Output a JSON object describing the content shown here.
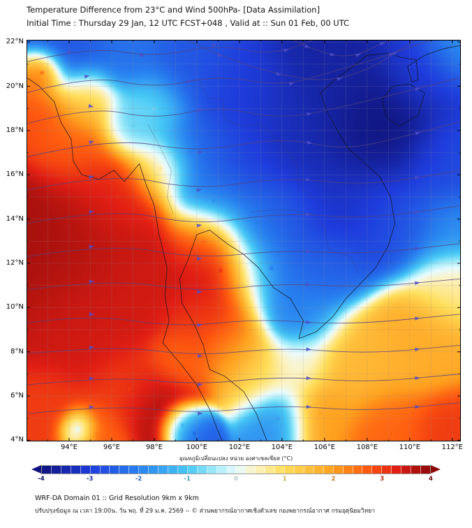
{
  "header": {
    "title_line1": "Temperature Difference from 23°C and Wind 500hPa- [Data Assimilation]",
    "title_line2": "Initial Time : Thursday 29 Jan, 12 UTC FCST+048 , Valid at ::  Sun 01 Feb, 00 UTC"
  },
  "footer": {
    "line1": "WRF-DA Domain 01 :: Grid Resolution 9km x 9km",
    "line2": "ปรับปรุงข้อมูล ณ เวลา 19:00น. วัน พฤ. ที่ 29 ม.ค. 2569 -- © ส่วนพยากรณ์อากาศเชิงตัวเลข กองพยากรณ์อากาศ กรมอุตุนิยมวิทยา"
  },
  "chart_data": {
    "type": "heatmap",
    "title": "Temperature Difference from 23°C and Wind 500hPa- [Data Assimilation]",
    "subtitle": "Initial Time : Thursday 29 Jan, 12 UTC FCST+048 , Valid at ::  Sun 01 Feb, 00 UTC",
    "extent": {
      "lon_min": 92.0,
      "lon_max": 112.4,
      "lat_min": 3.95,
      "lat_max": 22.1
    },
    "grid_step_deg": 1,
    "axes": {
      "lat_tick_values": [
        22,
        20,
        18,
        16,
        14,
        12,
        10,
        8,
        6,
        4
      ],
      "lat_tick_labels": [
        "22°N",
        "20°N",
        "18°N",
        "16°N",
        "14°N",
        "12°N",
        "10°N",
        "8°N",
        "6°N",
        "4°N"
      ],
      "lon_tick_values": [
        94,
        96,
        98,
        100,
        102,
        104,
        106,
        108,
        110,
        112
      ],
      "lon_tick_labels": [
        "94°E",
        "96°E",
        "98°E",
        "100°E",
        "102°E",
        "104°E",
        "106°E",
        "108°E",
        "110°E",
        "112°E"
      ]
    },
    "colorbar": {
      "label": "อุณหภูมิเปลี่ยนแปลง หน่วย องศาเซลเซียส (°C)",
      "range": [
        -4,
        4
      ],
      "tick_values": [
        -4,
        -3,
        -2,
        -1,
        0,
        1,
        2,
        3,
        4
      ],
      "cells": 40
    },
    "colormap": [
      [
        -4.0,
        "#10147E"
      ],
      [
        -3.0,
        "#1E3CDC"
      ],
      [
        -2.0,
        "#2882F0"
      ],
      [
        -1.0,
        "#46C8F5"
      ],
      [
        -0.4,
        "#A8EEFA"
      ],
      [
        0.0,
        "#E8FBFF"
      ],
      [
        0.4,
        "#FBF3C4"
      ],
      [
        1.0,
        "#FFDE5A"
      ],
      [
        2.0,
        "#FFA01E"
      ],
      [
        2.7,
        "#FF5A0F"
      ],
      [
        3.3,
        "#E11E14"
      ],
      [
        4.0,
        "#8C0A0A"
      ]
    ],
    "field_points": [
      [
        94.0,
        21.9,
        -2.6,
        1.2
      ],
      [
        96.8,
        21.6,
        -2.2,
        1.0
      ],
      [
        99.5,
        20.8,
        -2.6,
        1.2
      ],
      [
        102.0,
        19.5,
        -3.0,
        1.4
      ],
      [
        104.5,
        18.0,
        -3.4,
        1.5
      ],
      [
        106.2,
        20.6,
        -3.6,
        1.4
      ],
      [
        108.5,
        18.0,
        -4.0,
        1.6
      ],
      [
        110.8,
        20.8,
        -3.0,
        1.2
      ],
      [
        112.2,
        21.9,
        -1.6,
        0.9
      ],
      [
        107.0,
        14.5,
        -3.2,
        1.5
      ],
      [
        109.5,
        14.0,
        -2.6,
        1.3
      ],
      [
        111.8,
        16.5,
        -2.8,
        1.2
      ],
      [
        112.0,
        13.5,
        -1.8,
        1.0
      ],
      [
        99.7,
        17.0,
        -2.2,
        1.2
      ],
      [
        100.8,
        14.8,
        -2.0,
        1.0
      ],
      [
        102.8,
        13.8,
        -2.2,
        1.0
      ],
      [
        104.0,
        14.0,
        -2.6,
        1.1
      ],
      [
        102.0,
        16.5,
        -2.8,
        1.2
      ],
      [
        103.5,
        11.8,
        -2.4,
        1.2
      ],
      [
        105.0,
        9.7,
        -2.0,
        1.0
      ],
      [
        106.3,
        11.8,
        -2.4,
        1.0
      ],
      [
        99.9,
        4.3,
        -2.6,
        0.55
      ],
      [
        99.3,
        4.7,
        -1.6,
        0.5
      ],
      [
        103.8,
        5.0,
        -1.8,
        0.8
      ],
      [
        97.0,
        18.2,
        -1.0,
        0.8
      ],
      [
        94.4,
        4.5,
        -1.5,
        0.45
      ],
      [
        93.2,
        12.5,
        3.8,
        2.0
      ],
      [
        95.5,
        13.5,
        3.6,
        1.6
      ],
      [
        94.5,
        9.5,
        3.4,
        1.6
      ],
      [
        96.8,
        11.0,
        3.4,
        1.4
      ],
      [
        96.3,
        15.0,
        3.0,
        1.2
      ],
      [
        94.3,
        17.3,
        2.6,
        1.1
      ],
      [
        92.6,
        18.7,
        2.8,
        0.9
      ],
      [
        92.7,
        20.6,
        3.2,
        0.55
      ],
      [
        101.1,
        11.7,
        3.6,
        1.3
      ],
      [
        100.6,
        9.3,
        3.0,
        1.1
      ],
      [
        100.3,
        13.0,
        2.8,
        0.9
      ],
      [
        99.2,
        7.6,
        2.6,
        0.8
      ],
      [
        98.2,
        5.5,
        3.8,
        0.9
      ],
      [
        96.8,
        6.3,
        3.0,
        1.0
      ],
      [
        93.0,
        5.3,
        3.0,
        1.0
      ],
      [
        95.3,
        4.3,
        2.6,
        0.8
      ],
      [
        111.8,
        4.3,
        3.0,
        1.0
      ],
      [
        109.0,
        4.5,
        2.6,
        1.0
      ],
      [
        101.8,
        8.0,
        2.0,
        0.9
      ],
      [
        107.5,
        7.5,
        1.6,
        1.3
      ],
      [
        110.5,
        8.5,
        1.8,
        1.3
      ],
      [
        112.0,
        11.0,
        0.6,
        1.0
      ],
      [
        105.8,
        5.2,
        2.0,
        0.9
      ],
      [
        103.0,
        7.0,
        1.0,
        0.9
      ],
      [
        104.8,
        7.3,
        0.2,
        0.8
      ],
      [
        98.3,
        16.3,
        1.0,
        0.8
      ],
      [
        98.0,
        19.0,
        -0.5,
        0.9
      ],
      [
        94.8,
        19.3,
        1.2,
        0.8
      ]
    ],
    "streamlines": [
      [
        [
          92,
          5.2
        ],
        [
          96,
          5.6
        ],
        [
          100,
          5.2
        ],
        [
          104,
          5.6
        ],
        [
          108,
          5.3
        ],
        [
          112.4,
          5.7
        ]
      ],
      [
        [
          92,
          6.5
        ],
        [
          96,
          6.9
        ],
        [
          100,
          6.5
        ],
        [
          104,
          6.9
        ],
        [
          108,
          6.6
        ],
        [
          112.4,
          7.0
        ]
      ],
      [
        [
          92,
          7.9
        ],
        [
          96,
          8.3
        ],
        [
          100,
          7.8
        ],
        [
          104,
          8.2
        ],
        [
          108,
          7.9
        ],
        [
          112.4,
          8.3
        ]
      ],
      [
        [
          92,
          9.3
        ],
        [
          95,
          9.7
        ],
        [
          99,
          9.1
        ],
        [
          103,
          9.5
        ],
        [
          107,
          9.2
        ],
        [
          112.4,
          9.7
        ]
      ],
      [
        [
          92,
          10.8
        ],
        [
          96,
          11.3
        ],
        [
          100,
          10.7
        ],
        [
          104,
          11.1
        ],
        [
          108,
          10.9
        ],
        [
          112.4,
          11.3
        ]
      ],
      [
        [
          92,
          12.3
        ],
        [
          96,
          12.9
        ],
        [
          100,
          12.2
        ],
        [
          104,
          12.6
        ],
        [
          108,
          12.4
        ],
        [
          112.4,
          12.9
        ]
      ],
      [
        [
          92,
          13.8
        ],
        [
          96,
          14.5
        ],
        [
          100,
          13.7
        ],
        [
          104,
          14.3
        ],
        [
          108,
          14.0
        ],
        [
          112.4,
          14.6
        ]
      ],
      [
        [
          92,
          15.3
        ],
        [
          96,
          16.1
        ],
        [
          100,
          15.3
        ],
        [
          104,
          15.9
        ],
        [
          108,
          15.5
        ],
        [
          112.4,
          16.2
        ]
      ],
      [
        [
          92,
          16.8
        ],
        [
          96,
          17.7
        ],
        [
          100,
          17.0
        ],
        [
          104,
          17.7
        ],
        [
          107,
          17.1
        ],
        [
          110,
          17.8
        ],
        [
          112.4,
          18.4
        ]
      ],
      [
        [
          92,
          18.3
        ],
        [
          95,
          19.1
        ],
        [
          98,
          18.5
        ],
        [
          101,
          19.1
        ],
        [
          104,
          18.5
        ],
        [
          107,
          19.1
        ],
        [
          110,
          19.8
        ],
        [
          112.4,
          20.4
        ]
      ],
      [
        [
          92,
          19.7
        ],
        [
          95,
          20.5
        ],
        [
          98,
          19.9
        ],
        [
          101,
          20.5
        ],
        [
          104,
          20.0
        ],
        [
          106.5,
          20.7
        ],
        [
          109,
          21.4
        ],
        [
          111,
          22.1
        ]
      ],
      [
        [
          92,
          21.1
        ],
        [
          95,
          21.8
        ],
        [
          98,
          21.3
        ],
        [
          101,
          21.9
        ],
        [
          103.5,
          21.4
        ],
        [
          105.5,
          22.1
        ]
      ],
      [
        [
          99.5,
          22.1
        ],
        [
          101.5,
          21.2
        ],
        [
          104,
          20.5
        ],
        [
          106.2,
          20.2
        ],
        [
          108.2,
          20.8
        ],
        [
          109.6,
          21.7
        ],
        [
          110.3,
          22.1
        ]
      ],
      [
        [
          104.5,
          22.1
        ],
        [
          105.8,
          21.5
        ],
        [
          107.3,
          21.3
        ],
        [
          108.6,
          21.9
        ],
        [
          109.2,
          22.1
        ]
      ]
    ],
    "coastlines": [
      [
        [
          92.0,
          20.4
        ],
        [
          92.6,
          20.0
        ],
        [
          93.3,
          19.3
        ],
        [
          93.6,
          18.4
        ],
        [
          94.1,
          17.6
        ],
        [
          94.2,
          16.6
        ],
        [
          94.6,
          16.0
        ],
        [
          95.4,
          15.8
        ],
        [
          96.1,
          16.2
        ],
        [
          96.6,
          15.7
        ],
        [
          97.3,
          16.5
        ],
        [
          97.6,
          15.6
        ],
        [
          98.0,
          14.6
        ],
        [
          98.2,
          13.4
        ],
        [
          98.6,
          11.8
        ],
        [
          98.5,
          10.5
        ],
        [
          98.7,
          9.4
        ],
        [
          98.4,
          8.4
        ],
        [
          99.2,
          7.5
        ],
        [
          100.0,
          6.5
        ],
        [
          100.6,
          5.4
        ],
        [
          101.0,
          4.4
        ],
        [
          101.2,
          3.95
        ]
      ],
      [
        [
          103.3,
          3.95
        ],
        [
          102.8,
          5.2
        ],
        [
          102.2,
          6.2
        ],
        [
          101.3,
          6.9
        ],
        [
          100.6,
          7.2
        ],
        [
          100.3,
          8.3
        ],
        [
          99.9,
          9.2
        ],
        [
          99.3,
          10.2
        ],
        [
          99.2,
          11.3
        ],
        [
          99.6,
          12.2
        ],
        [
          100.0,
          13.3
        ],
        [
          100.6,
          13.5
        ],
        [
          101.4,
          12.9
        ],
        [
          102.2,
          12.4
        ],
        [
          102.9,
          11.8
        ],
        [
          103.6,
          10.9
        ],
        [
          104.4,
          10.4
        ],
        [
          105.0,
          9.4
        ],
        [
          104.8,
          8.6
        ],
        [
          105.6,
          8.9
        ],
        [
          106.4,
          9.6
        ],
        [
          107.0,
          10.4
        ],
        [
          107.6,
          11.0
        ],
        [
          108.4,
          11.8
        ],
        [
          109.0,
          12.8
        ],
        [
          109.3,
          13.8
        ],
        [
          109.1,
          15.0
        ],
        [
          108.6,
          15.9
        ],
        [
          107.8,
          16.6
        ],
        [
          107.1,
          17.2
        ],
        [
          106.6,
          18.0
        ],
        [
          106.1,
          18.9
        ],
        [
          105.8,
          19.7
        ],
        [
          106.5,
          20.3
        ],
        [
          107.2,
          20.8
        ],
        [
          108.0,
          21.4
        ],
        [
          109.0,
          21.5
        ],
        [
          109.6,
          21.3
        ],
        [
          110.3,
          21.2
        ],
        [
          110.4,
          20.3
        ],
        [
          110.1,
          20.2
        ],
        [
          109.9,
          20.9
        ],
        [
          110.7,
          21.4
        ],
        [
          111.6,
          21.7
        ],
        [
          112.4,
          21.85
        ]
      ],
      [
        [
          108.7,
          19.4
        ],
        [
          109.2,
          20.0
        ],
        [
          110.0,
          20.1
        ],
        [
          110.7,
          19.7
        ],
        [
          110.4,
          18.7
        ],
        [
          109.5,
          18.2
        ],
        [
          108.9,
          18.6
        ],
        [
          108.7,
          19.4
        ]
      ]
    ],
    "borders": [
      [
        [
          97.7,
          18.3
        ],
        [
          98.3,
          17.2
        ],
        [
          98.8,
          16.2
        ],
        [
          98.6,
          15.0
        ],
        [
          98.9,
          14.2
        ]
      ],
      [
        [
          100.1,
          20.3
        ],
        [
          100.5,
          19.5
        ],
        [
          101.2,
          19.4
        ],
        [
          101.3,
          18.5
        ],
        [
          102.1,
          18.2
        ],
        [
          103.0,
          18.3
        ],
        [
          103.9,
          17.5
        ],
        [
          104.7,
          16.5
        ],
        [
          104.8,
          15.5
        ],
        [
          105.6,
          14.8
        ]
      ],
      [
        [
          102.5,
          14.3
        ],
        [
          103.5,
          14.4
        ],
        [
          104.5,
          14.4
        ],
        [
          105.5,
          14.2
        ],
        [
          106.0,
          13.6
        ],
        [
          106.2,
          12.6
        ],
        [
          107.2,
          12.3
        ],
        [
          107.6,
          11.6
        ]
      ]
    ],
    "style": {
      "stream_color": "#54427E",
      "arrow_color": "#4E4EC8",
      "coast_color": "#14141E",
      "border_color": "#3C3C5A",
      "grid_color": "#8C8C96",
      "frame_color": "#000000"
    }
  }
}
